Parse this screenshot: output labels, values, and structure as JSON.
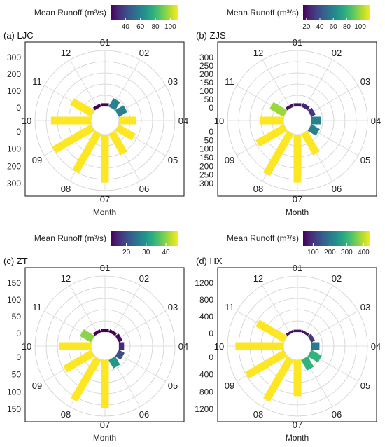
{
  "figure": {
    "panels": [
      {
        "label": "(a) LJC",
        "cbar_title": "Mean Runoff (m³/s)",
        "cbar_ticks": [
          "40",
          "60",
          "80",
          "100"
        ],
        "cbar_range": [
          20,
          110
        ],
        "axis_ticks_upper": [
          "300",
          "200",
          "100",
          "0"
        ],
        "axis_ticks_lower": [
          "0",
          "100",
          "200",
          "300"
        ],
        "axis_max": 350,
        "xlabel": "Month"
      },
      {
        "label": "(b) ZJS",
        "cbar_title": "Mean Runoff (m³/s)",
        "cbar_ticks": [
          "20",
          "40",
          "60",
          "80",
          "100"
        ],
        "cbar_range": [
          15,
          115
        ],
        "axis_ticks_upper": [
          "300",
          "250",
          "200",
          "150",
          "100",
          "50",
          "0"
        ],
        "axis_ticks_lower": [
          "0",
          "50",
          "100",
          "150",
          "200",
          "250",
          "300"
        ],
        "axis_max": 350,
        "xlabel": "Month"
      },
      {
        "label": "(c) ZT",
        "cbar_title": "Mean Runoff (m³/s)",
        "cbar_ticks": [
          "20",
          "30",
          "40"
        ],
        "cbar_range": [
          12,
          46
        ],
        "axis_ticks_upper": [
          "150",
          "100",
          "50",
          "0"
        ],
        "axis_ticks_lower": [
          "0",
          "50",
          "100",
          "150"
        ],
        "axis_max": 175,
        "xlabel": "Month"
      },
      {
        "label": "(d) HX",
        "cbar_title": "Mean Runoff (m³/s)",
        "cbar_ticks": [
          "100",
          "200",
          "300",
          "400"
        ],
        "cbar_range": [
          40,
          440
        ],
        "axis_ticks_upper": [
          "1200",
          "800",
          "400",
          "0"
        ],
        "axis_ticks_lower": [
          "0",
          "400",
          "800",
          "1200"
        ],
        "axis_max": 1400,
        "xlabel": "Month"
      }
    ]
  },
  "chart_data": [
    {
      "type": "polar-bar",
      "title": "(a) LJC",
      "categories": [
        "01",
        "02",
        "03",
        "04",
        "05",
        "06",
        "07",
        "08",
        "09",
        "10",
        "11",
        "12"
      ],
      "values": [
        20,
        60,
        60,
        110,
        120,
        150,
        300,
        280,
        280,
        250,
        150,
        20
      ],
      "colorbar_label": "Mean Runoff (m³/s)",
      "colorbar_ticks": [
        40,
        60,
        80,
        100
      ],
      "xlabel": "Month"
    },
    {
      "type": "polar-bar",
      "title": "(b) ZJS",
      "categories": [
        "01",
        "02",
        "03",
        "04",
        "05",
        "06",
        "07",
        "08",
        "09",
        "10",
        "11",
        "12"
      ],
      "values": [
        20,
        25,
        30,
        60,
        60,
        150,
        300,
        300,
        200,
        150,
        100,
        20
      ],
      "colorbar_label": "Mean Runoff (m³/s)",
      "colorbar_ticks": [
        20,
        40,
        60,
        80,
        100
      ],
      "xlabel": "Month"
    },
    {
      "type": "polar-bar",
      "title": "(c) ZT",
      "categories": [
        "01",
        "02",
        "03",
        "04",
        "05",
        "06",
        "07",
        "08",
        "09",
        "10",
        "11",
        "12"
      ],
      "values": [
        10,
        10,
        13,
        16,
        20,
        30,
        150,
        150,
        100,
        100,
        40,
        10
      ],
      "colorbar_label": "Mean Runoff (m³/s)",
      "colorbar_ticks": [
        20,
        30,
        40
      ],
      "xlabel": "Month"
    },
    {
      "type": "polar-bar",
      "title": "(d) HX",
      "categories": [
        "01",
        "02",
        "03",
        "04",
        "05",
        "06",
        "07",
        "08",
        "09",
        "10",
        "11",
        "12"
      ],
      "values": [
        60,
        60,
        100,
        200,
        300,
        300,
        900,
        1200,
        1100,
        1200,
        800,
        60
      ],
      "colorbar_label": "Mean Runoff (m³/s)",
      "colorbar_ticks": [
        100,
        200,
        300,
        400
      ],
      "xlabel": "Month"
    }
  ]
}
